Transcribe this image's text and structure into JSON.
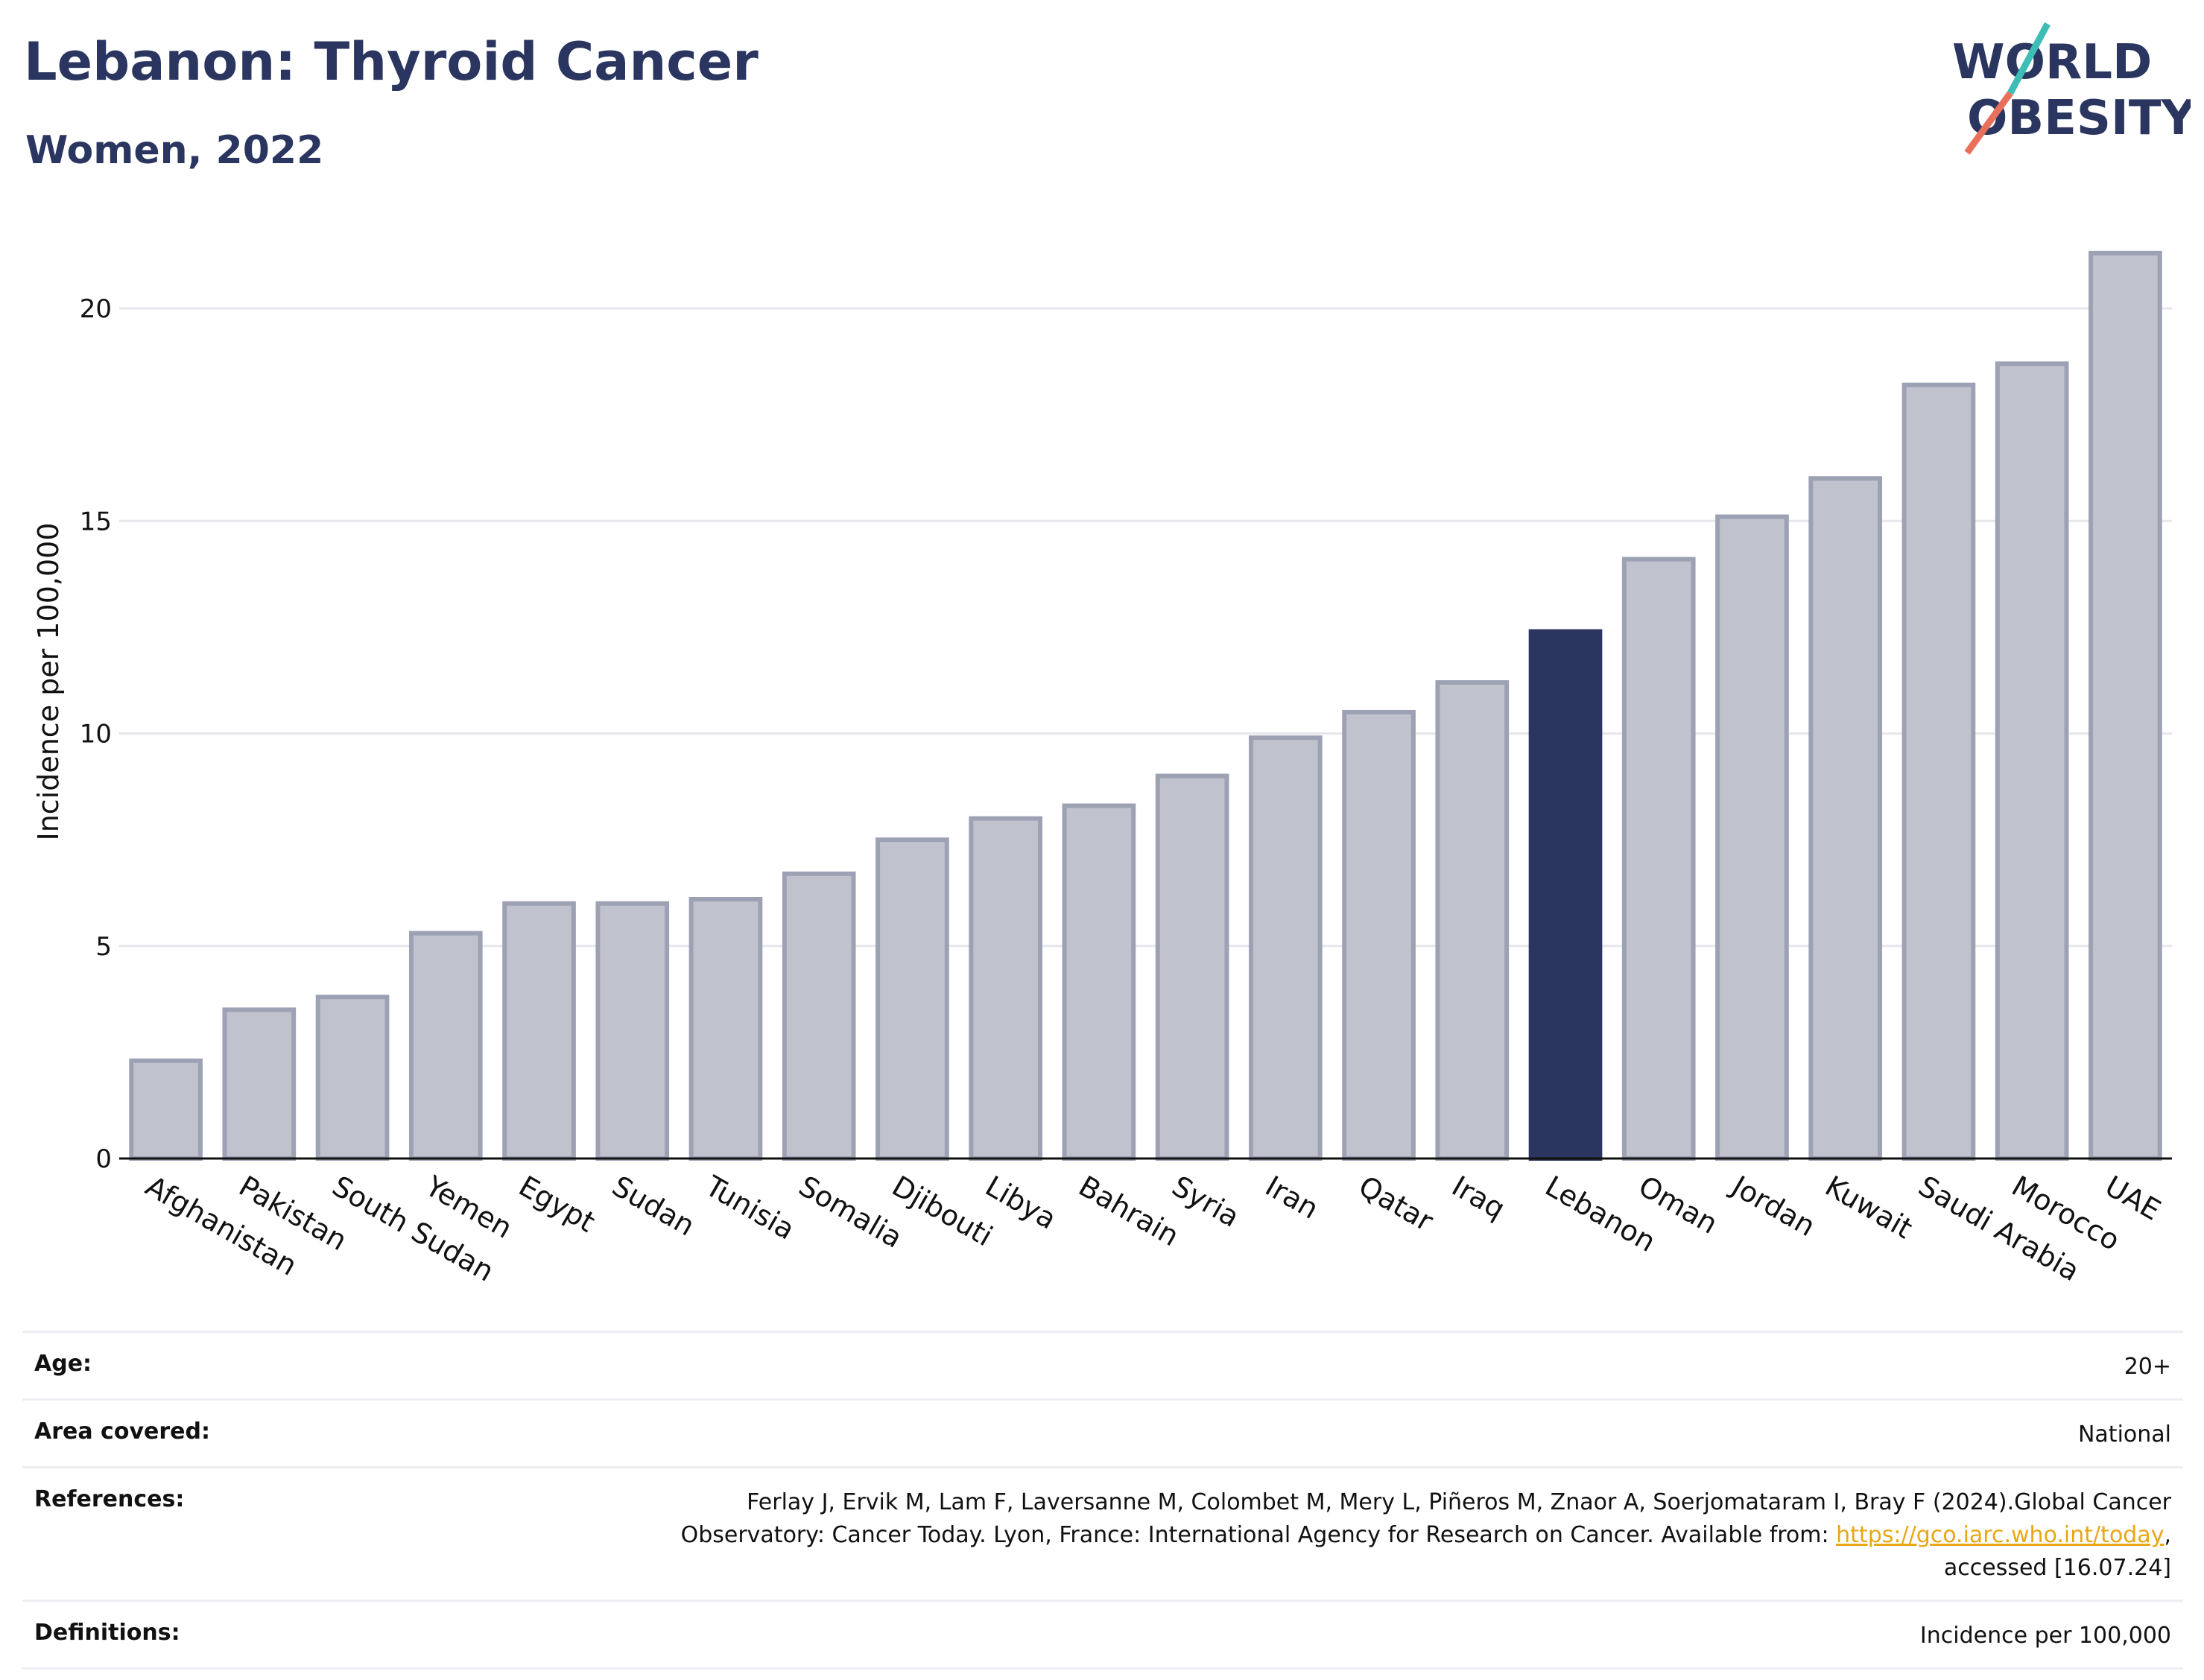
{
  "header": {
    "title": "Lebanon: Thyroid Cancer",
    "subtitle": "Women, 2022"
  },
  "logo": {
    "line1": "WORLD",
    "line2": "OBESITY",
    "slash_colors": [
      "#3dbdb5",
      "#e8705a"
    ],
    "text_color": "#2a3560"
  },
  "chart_data": {
    "type": "bar",
    "ylabel": "Incidence per 100,000",
    "ylim": [
      0,
      21.5
    ],
    "yticks": [
      0,
      5,
      10,
      15,
      20
    ],
    "grid": true,
    "highlight": "Lebanon",
    "colors": {
      "bar": "#c0c3ce",
      "bar_border": "#9da1b4",
      "highlight": "#2a3560"
    },
    "categories": [
      "Afghanistan",
      "Pakistan",
      "South Sudan",
      "Yemen",
      "Egypt",
      "Sudan",
      "Tunisia",
      "Somalia",
      "Djibouti",
      "Libya",
      "Bahrain",
      "Syria",
      "Iran",
      "Qatar",
      "Iraq",
      "Lebanon",
      "Oman",
      "Jordan",
      "Kuwait",
      "Saudi Arabia",
      "Morocco",
      "UAE"
    ],
    "values": [
      2.3,
      3.5,
      3.8,
      5.3,
      6.0,
      6.0,
      6.1,
      6.7,
      7.5,
      8.0,
      8.3,
      9.0,
      9.9,
      10.5,
      11.2,
      12.4,
      14.1,
      15.1,
      16.0,
      18.2,
      18.7,
      21.3
    ]
  },
  "info": {
    "age_label": "Age:",
    "age_value": "20+",
    "area_label": "Area covered:",
    "area_value": "National",
    "references_label": "References:",
    "references_line1": "Ferlay J, Ervik M, Lam F, Laversanne M, Colombet M, Mery L, Piñeros M, Znaor A, Soerjomataram I, Bray F (2024).Global Cancer",
    "references_line2": "Observatory: Cancer Today. Lyon, France: International Agency for Research on Cancer. Available from:",
    "references_link": "https://gco.iarc.who.int/today",
    "references_line3": "accessed [16.07.24]",
    "definitions_label": "Definitions:",
    "definitions_value": "Incidence per 100,000"
  }
}
